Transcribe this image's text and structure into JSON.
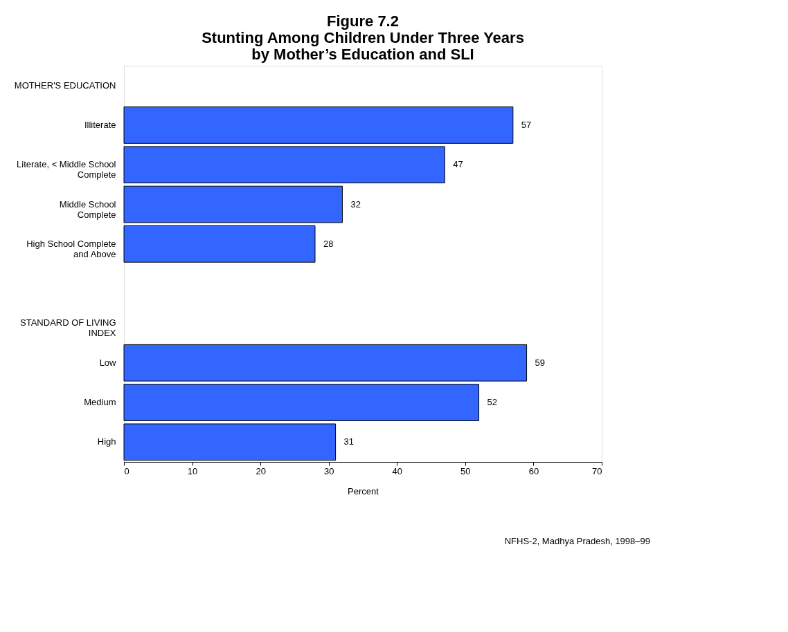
{
  "chart_data": {
    "type": "bar",
    "orientation": "horizontal",
    "title": "Figure 7.2\nStunting Among Children Under Three Years\nby Mother’s Education and SLI",
    "categories": [
      "MOTHER'S EDUCATION",
      "Illiterate",
      "Literate, < Middle School\nComplete",
      "Middle School\nComplete",
      "High School Complete\nand Above",
      null,
      "STANDARD OF LIVING\nINDEX",
      "Low",
      "Medium",
      "High"
    ],
    "values": [
      null,
      57,
      47,
      32,
      28,
      null,
      null,
      59,
      52,
      31
    ],
    "color": "#3366ff",
    "xlim": [
      0,
      70
    ],
    "xticks": [
      0,
      10,
      20,
      30,
      40,
      50,
      60,
      70
    ],
    "xlabel": "Percent",
    "grid": false,
    "data_labels": true,
    "annotations": [
      "NFHS-2, Madhya Pradesh, 1998–99"
    ]
  }
}
